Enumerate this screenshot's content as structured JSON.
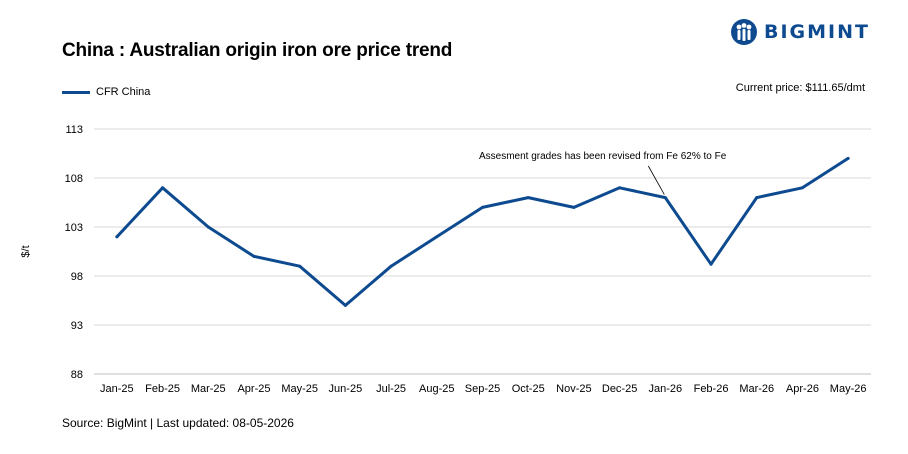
{
  "header": {
    "title": "China : Australian origin iron ore price trend",
    "logo_text": "BIGMINT"
  },
  "legend": {
    "series_label": "CFR China"
  },
  "current_price": "Current price: $111.65/dmt",
  "footer": {
    "source": "Source: BigMint | Last updated: 08-05-2026"
  },
  "colors": {
    "line": "#0d4a8f",
    "grid": "#d9d9d9",
    "brand": "#0d4a8f"
  },
  "chart_data": {
    "type": "line",
    "title": "China : Australian origin iron ore price trend",
    "xlabel": "",
    "ylabel": "$/t",
    "categories": [
      "Jan-25",
      "Feb-25",
      "Mar-25",
      "Apr-25",
      "May-25",
      "Jun-25",
      "Jul-25",
      "Aug-25",
      "Sep-25",
      "Oct-25",
      "Nov-25",
      "Dec-25",
      "Jan-26",
      "Feb-26",
      "Mar-26",
      "Apr-26",
      "May-26"
    ],
    "series": [
      {
        "name": "CFR China",
        "values": [
          102,
          107,
          103,
          100,
          99,
          95,
          99,
          102,
          105,
          106,
          105,
          107,
          106,
          99.2,
          106,
          107,
          110
        ]
      }
    ],
    "ylim": [
      88,
      113
    ],
    "yticks": [
      88,
      93,
      98,
      103,
      108,
      113
    ],
    "grid": true,
    "legend_position": "top-left",
    "annotation": {
      "text": "Assesment grades has been revised from Fe 62% to Fe",
      "category": "Jan-26"
    }
  }
}
